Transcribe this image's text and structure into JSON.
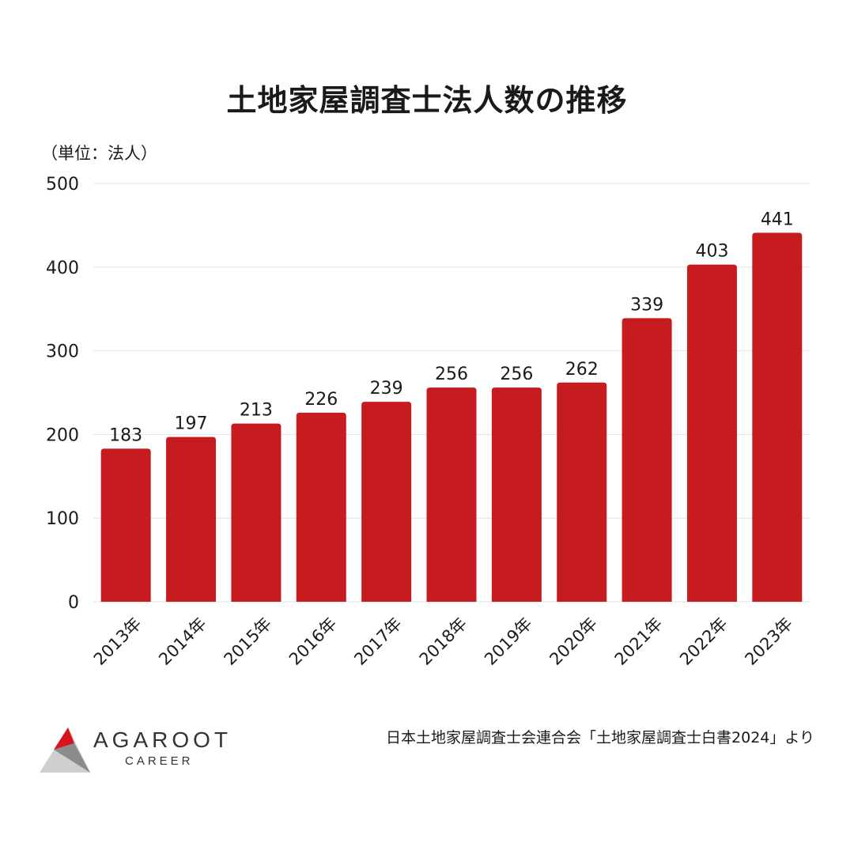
{
  "title": "土地家屋調査士法人数の推移",
  "unit_label": "（単位：法人）",
  "source": "日本土地家屋調査士会連合会「土地家屋調査士白書2024」より",
  "logo": {
    "word": "AGAROOT",
    "sub": "CAREER"
  },
  "chart_data": {
    "type": "bar",
    "title": "土地家屋調査士法人数の推移",
    "categories": [
      "2013年",
      "2014年",
      "2015年",
      "2016年",
      "2017年",
      "2018年",
      "2019年",
      "2020年",
      "2021年",
      "2022年",
      "2023年"
    ],
    "values": [
      183,
      197,
      213,
      226,
      239,
      256,
      256,
      262,
      339,
      403,
      441
    ],
    "ylim": [
      0,
      500
    ],
    "yticks": [
      0,
      100,
      200,
      300,
      400,
      500
    ],
    "grid": true,
    "bar_color": "#c71c1f",
    "data_labels": true
  },
  "colors": {
    "bar": "#c71c1f",
    "grid": "#e2e2e2",
    "logo_red": "#d9141b",
    "logo_gray": "#8c8c8c",
    "logo_light": "#cfcfcf"
  }
}
